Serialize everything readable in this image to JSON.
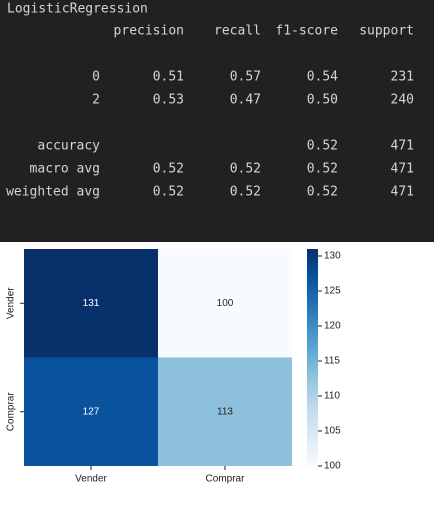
{
  "report": {
    "title": "LogisticRegression",
    "columns": [
      "precision",
      "recall",
      "f1-score",
      "support"
    ],
    "rows": [
      {
        "label": "0",
        "cells": [
          "0.51",
          "0.57",
          "0.54",
          "231"
        ]
      },
      {
        "label": "2",
        "cells": [
          "0.53",
          "0.47",
          "0.50",
          "240"
        ]
      },
      {
        "label": "accuracy",
        "cells": [
          null,
          null,
          "0.52",
          "471"
        ]
      },
      {
        "label": "macro avg",
        "cells": [
          "0.52",
          "0.52",
          "0.52",
          "471"
        ]
      },
      {
        "label": "weighted avg",
        "cells": [
          "0.52",
          "0.52",
          "0.52",
          "471"
        ]
      }
    ]
  },
  "chart_data": {
    "type": "heatmap",
    "x_categories": [
      "Vender",
      "Comprar"
    ],
    "y_categories": [
      "Vender",
      "Comprar"
    ],
    "values": [
      [
        131,
        100
      ],
      [
        127,
        113
      ]
    ],
    "clim": [
      100,
      131
    ],
    "cticks": [
      100,
      105,
      110,
      115,
      120,
      125,
      130
    ],
    "colormap": [
      "#f7fbff",
      "#deebf7",
      "#c6dbef",
      "#9ecae1",
      "#6baed6",
      "#4292c6",
      "#2171b5",
      "#08519c",
      "#08306b"
    ]
  }
}
